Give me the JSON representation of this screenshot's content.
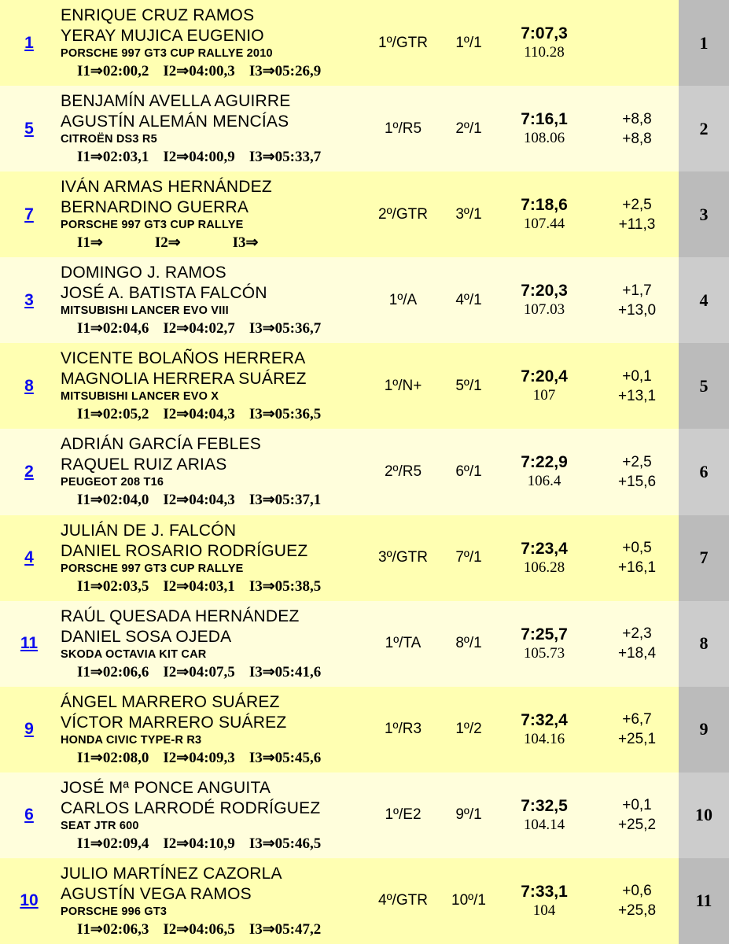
{
  "colors": {
    "row_odd": "#FFFFB2",
    "row_even": "#FFFEDC",
    "pos_odd": "#BBBBBB",
    "pos_even": "#CCCCCC",
    "link_blue": "#0B0BEE"
  },
  "labels": {
    "i1": "I1⇒",
    "i2": "I2⇒",
    "i3": "I3⇒"
  },
  "table": {
    "rows": [
      {
        "entry_number": "1",
        "driver1": "ENRIQUE CRUZ RAMOS",
        "driver2": "YERAY MUJICA EUGENIO",
        "car": "PORSCHE 997 GT3 CUP RALLYE 2010",
        "i1": "02:00,2",
        "i2": "04:00,3",
        "i3": "05:26,9",
        "class_position": "1º/GTR",
        "stage_position": "1º/1",
        "total_time": "7:07,3",
        "avg_speed": "110.28",
        "gap_prev": "",
        "gap_first": "",
        "overall_position": "1"
      },
      {
        "entry_number": "5",
        "driver1": "BENJAMÍN AVELLA AGUIRRE",
        "driver2": "AGUSTÍN ALEMÁN MENCÍAS",
        "car": "CITROËN DS3 R5",
        "i1": "02:03,1",
        "i2": "04:00,9",
        "i3": "05:33,7",
        "class_position": "1º/R5",
        "stage_position": "2º/1",
        "total_time": "7:16,1",
        "avg_speed": "108.06",
        "gap_prev": "+8,8",
        "gap_first": "+8,8",
        "overall_position": "2"
      },
      {
        "entry_number": "7",
        "driver1": "IVÁN ARMAS HERNÁNDEZ",
        "driver2": "BERNARDINO GUERRA",
        "car": "PORSCHE 997 GT3 CUP RALLYE",
        "i1": "",
        "i2": "",
        "i3": "",
        "class_position": "2º/GTR",
        "stage_position": "3º/1",
        "total_time": "7:18,6",
        "avg_speed": "107.44",
        "gap_prev": "+2,5",
        "gap_first": "+11,3",
        "overall_position": "3"
      },
      {
        "entry_number": "3",
        "driver1": "DOMINGO J. RAMOS",
        "driver2": "JOSÉ A. BATISTA FALCÓN",
        "car": "MITSUBISHI LANCER EVO VIII",
        "i1": "02:04,6",
        "i2": "04:02,7",
        "i3": "05:36,7",
        "class_position": "1º/A",
        "stage_position": "4º/1",
        "total_time": "7:20,3",
        "avg_speed": "107.03",
        "gap_prev": "+1,7",
        "gap_first": "+13,0",
        "overall_position": "4"
      },
      {
        "entry_number": "8",
        "driver1": "VICENTE BOLAÑOS HERRERA",
        "driver2": "MAGNOLIA HERRERA SUÁREZ",
        "car": "MITSUBISHI LANCER EVO X",
        "i1": "02:05,2",
        "i2": "04:04,3",
        "i3": "05:36,5",
        "class_position": "1º/N+",
        "stage_position": "5º/1",
        "total_time": "7:20,4",
        "avg_speed": "107",
        "gap_prev": "+0,1",
        "gap_first": "+13,1",
        "overall_position": "5"
      },
      {
        "entry_number": "2",
        "driver1": "ADRIÁN GARCÍA FEBLES",
        "driver2": "RAQUEL RUIZ ARIAS",
        "car": "PEUGEOT 208 T16",
        "i1": "02:04,0",
        "i2": "04:04,3",
        "i3": "05:37,1",
        "class_position": "2º/R5",
        "stage_position": "6º/1",
        "total_time": "7:22,9",
        "avg_speed": "106.4",
        "gap_prev": "+2,5",
        "gap_first": "+15,6",
        "overall_position": "6"
      },
      {
        "entry_number": "4",
        "driver1": "JULIÁN DE J. FALCÓN",
        "driver2": "DANIEL ROSARIO RODRÍGUEZ",
        "car": "PORSCHE 997 GT3 CUP RALLYE",
        "i1": "02:03,5",
        "i2": "04:03,1",
        "i3": "05:38,5",
        "class_position": "3º/GTR",
        "stage_position": "7º/1",
        "total_time": "7:23,4",
        "avg_speed": "106.28",
        "gap_prev": "+0,5",
        "gap_first": "+16,1",
        "overall_position": "7"
      },
      {
        "entry_number": "11",
        "driver1": "RAÚL QUESADA HERNÁNDEZ",
        "driver2": "DANIEL SOSA OJEDA",
        "car": "SKODA OCTAVIA KIT CAR",
        "i1": "02:06,6",
        "i2": "04:07,5",
        "i3": "05:41,6",
        "class_position": "1º/TA",
        "stage_position": "8º/1",
        "total_time": "7:25,7",
        "avg_speed": "105.73",
        "gap_prev": "+2,3",
        "gap_first": "+18,4",
        "overall_position": "8"
      },
      {
        "entry_number": "9",
        "driver1": "ÁNGEL MARRERO SUÁREZ",
        "driver2": "VÍCTOR MARRERO SUÁREZ",
        "car": "HONDA CIVIC TYPE-R R3",
        "i1": "02:08,0",
        "i2": "04:09,3",
        "i3": "05:45,6",
        "class_position": "1º/R3",
        "stage_position": "1º/2",
        "total_time": "7:32,4",
        "avg_speed": "104.16",
        "gap_prev": "+6,7",
        "gap_first": "+25,1",
        "overall_position": "9"
      },
      {
        "entry_number": "6",
        "driver1": "JOSÉ Mª PONCE ANGUITA",
        "driver2": "CARLOS LARRODÉ RODRÍGUEZ",
        "car": "SEAT JTR 600",
        "i1": "02:09,4",
        "i2": "04:10,9",
        "i3": "05:46,5",
        "class_position": "1º/E2",
        "stage_position": "9º/1",
        "total_time": "7:32,5",
        "avg_speed": "104.14",
        "gap_prev": "+0,1",
        "gap_first": "+25,2",
        "overall_position": "10"
      },
      {
        "entry_number": "10",
        "driver1": "JULIO MARTÍNEZ CAZORLA",
        "driver2": "AGUSTÍN VEGA RAMOS",
        "car": "PORSCHE 996 GT3",
        "i1": "02:06,3",
        "i2": "04:06,5",
        "i3": "05:47,2",
        "class_position": "4º/GTR",
        "stage_position": "10º/1",
        "total_time": "7:33,1",
        "avg_speed": "104",
        "gap_prev": "+0,6",
        "gap_first": "+25,8",
        "overall_position": "11"
      }
    ]
  }
}
